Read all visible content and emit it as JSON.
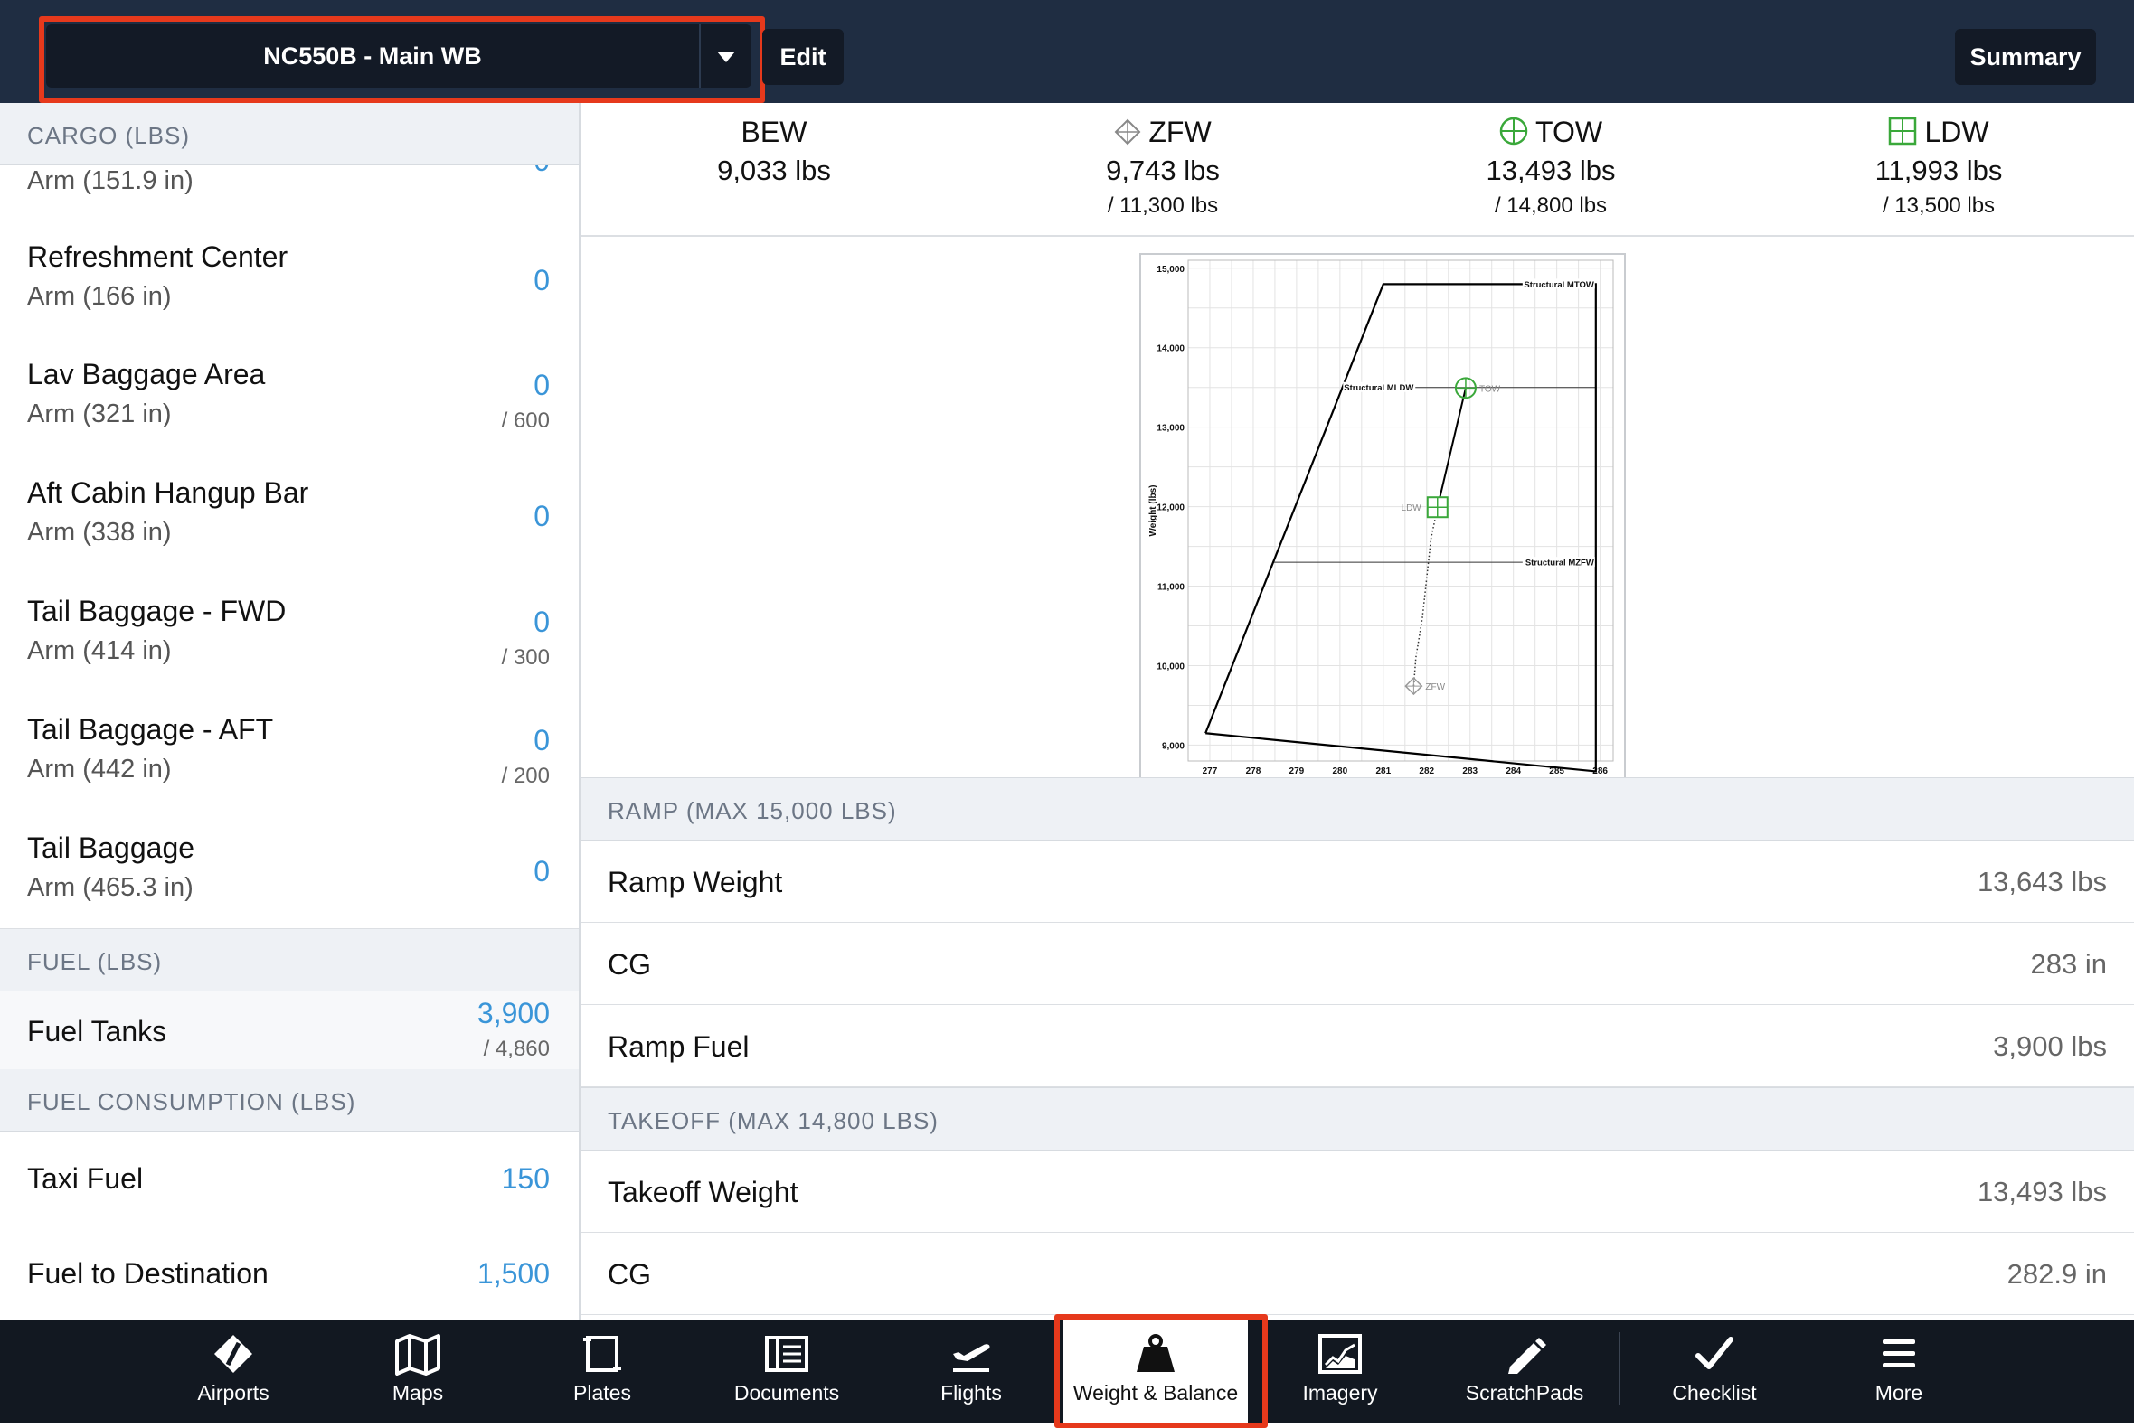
{
  "header": {
    "profile_name": "NC550B - Main WB",
    "edit_label": "Edit",
    "summary_label": "Summary"
  },
  "cargo": {
    "header": "CARGO (LBS)",
    "partial_item": {
      "arm": "Arm (151.9 in)",
      "value": "0"
    },
    "items": [
      {
        "name": "Refreshment Center",
        "arm": "Arm (166 in)",
        "value": "0",
        "max": ""
      },
      {
        "name": "Lav Baggage Area",
        "arm": "Arm (321 in)",
        "value": "0",
        "max": "/ 600"
      },
      {
        "name": "Aft Cabin Hangup Bar",
        "arm": "Arm (338 in)",
        "value": "0",
        "max": ""
      },
      {
        "name": "Tail Baggage - FWD",
        "arm": "Arm (414 in)",
        "value": "0",
        "max": "/ 300"
      },
      {
        "name": "Tail Baggage - AFT",
        "arm": "Arm (442 in)",
        "value": "0",
        "max": "/ 200"
      },
      {
        "name": "Tail Baggage",
        "arm": "Arm (465.3 in)",
        "value": "0",
        "max": ""
      }
    ]
  },
  "fuel": {
    "header": "FUEL (LBS)",
    "tanks": {
      "name": "Fuel Tanks",
      "value": "3,900",
      "max": "/ 4,860"
    }
  },
  "fuel_consumption": {
    "header": "FUEL CONSUMPTION (LBS)",
    "items": [
      {
        "name": "Taxi Fuel",
        "value": "150"
      },
      {
        "name": "Fuel to Destination",
        "value": "1,500"
      }
    ]
  },
  "stats": [
    {
      "label": "BEW",
      "weight": "9,033 lbs",
      "limit": "",
      "icon": ""
    },
    {
      "label": "ZFW",
      "weight": "9,743 lbs",
      "limit": "/ 11,300 lbs",
      "icon": "diamond-crosshair-icon"
    },
    {
      "label": "TOW",
      "weight": "13,493 lbs",
      "limit": "/ 14,800 lbs",
      "icon": "circle-crosshair-icon"
    },
    {
      "label": "LDW",
      "weight": "11,993 lbs",
      "limit": "/ 13,500 lbs",
      "icon": "square-grid-icon"
    }
  ],
  "chart_data": {
    "type": "line",
    "xlabel": "",
    "ylabel": "Weight (lbs)",
    "xlim": [
      276.5,
      286.3
    ],
    "ylim": [
      8800,
      15100
    ],
    "x_ticks": [
      277,
      278,
      279,
      280,
      281,
      282,
      283,
      284,
      285,
      286
    ],
    "y_ticks": [
      9000,
      10000,
      11000,
      12000,
      13000,
      14000,
      15000
    ],
    "y_tick_labels": [
      "9,000",
      "10,000",
      "11,000",
      "12,000",
      "13,000",
      "14,000",
      "15,000"
    ],
    "grid": true,
    "envelope": [
      {
        "x": 276.9,
        "y": 9150
      },
      {
        "x": 281.0,
        "y": 14800
      },
      {
        "x": 285.9,
        "y": 14800
      },
      {
        "x": 285.9,
        "y": 8670
      },
      {
        "x": 276.9,
        "y": 9150
      }
    ],
    "limit_lines": [
      {
        "label": "Structural MTOW",
        "y": 14800,
        "x_start": 281.0,
        "x_end": 285.9
      },
      {
        "label": "Structural MLDW",
        "y": 13500,
        "x_start": 280.05,
        "x_end": 285.9
      },
      {
        "label": "Structural MZFW",
        "y": 11300,
        "x_start": 278.45,
        "x_end": 285.9
      }
    ],
    "points": [
      {
        "label": "ZFW",
        "x": 281.7,
        "y": 9743,
        "color": "#9a9a9a"
      },
      {
        "label": "LDW",
        "x": 282.25,
        "y": 11993,
        "color": "#3aa83a"
      },
      {
        "label": "TOW",
        "x": 282.9,
        "y": 13493,
        "color": "#3aa83a"
      }
    ],
    "fuel_burn_curve": [
      {
        "x": 281.7,
        "y": 9743
      },
      {
        "x": 281.75,
        "y": 10100
      },
      {
        "x": 281.9,
        "y": 10600
      },
      {
        "x": 282.0,
        "y": 11100
      },
      {
        "x": 282.1,
        "y": 11600
      },
      {
        "x": 282.25,
        "y": 11993
      }
    ],
    "flight_path": [
      {
        "x": 282.25,
        "y": 11993
      },
      {
        "x": 282.9,
        "y": 13493
      }
    ]
  },
  "ramp": {
    "header": "RAMP (MAX 15,000 LBS)",
    "rows": [
      {
        "name": "Ramp Weight",
        "value": "13,643 lbs"
      },
      {
        "name": "CG",
        "value": "283 in"
      },
      {
        "name": "Ramp Fuel",
        "value": "3,900 lbs"
      }
    ]
  },
  "takeoff": {
    "header": "TAKEOFF (MAX 14,800 LBS)",
    "rows": [
      {
        "name": "Takeoff Weight",
        "value": "13,493 lbs"
      },
      {
        "name": "CG",
        "value": "282.9 in"
      }
    ]
  },
  "tabs": [
    {
      "label": "Airports",
      "icon": "airports-icon"
    },
    {
      "label": "Maps",
      "icon": "map-icon"
    },
    {
      "label": "Plates",
      "icon": "plates-icon"
    },
    {
      "label": "Documents",
      "icon": "documents-icon"
    },
    {
      "label": "Flights",
      "icon": "flights-icon"
    },
    {
      "label": "Weight & Balance",
      "icon": "weight-icon",
      "active": true
    },
    {
      "label": "Imagery",
      "icon": "imagery-icon"
    },
    {
      "label": "ScratchPads",
      "icon": "pencil-icon"
    },
    {
      "label": "Checklist",
      "icon": "checkmark-icon"
    },
    {
      "label": "More",
      "icon": "menu-icon"
    }
  ],
  "colors": {
    "accent_blue": "#3a95d8",
    "highlight_red": "#e6391c",
    "header_bg": "#1f2d42",
    "tabbar_bg": "#121821",
    "green_marker": "#3aa83a"
  }
}
